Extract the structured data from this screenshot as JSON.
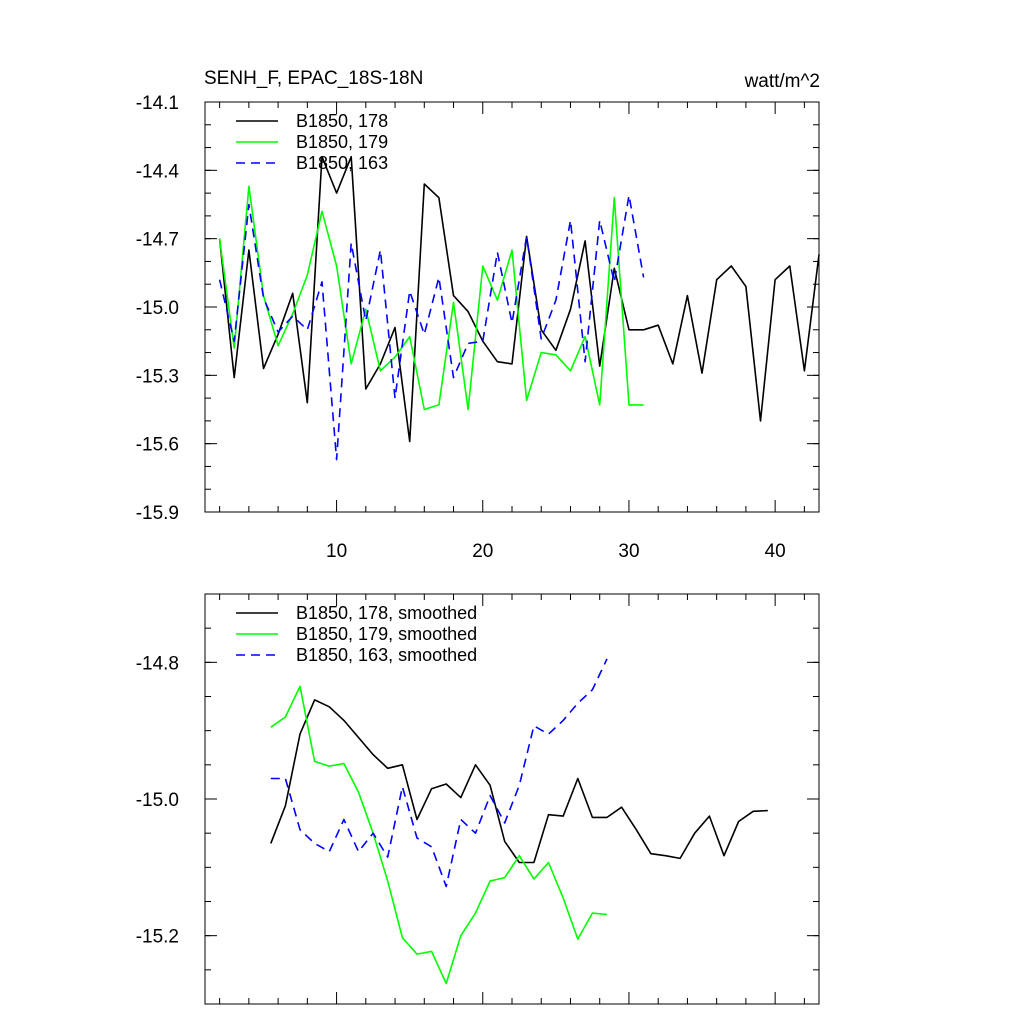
{
  "chart_data": [
    {
      "type": "line",
      "title_left": "SENH_F, EPAC_18S-18N",
      "title_right": "watt/m^2",
      "xlim": [
        1,
        43
      ],
      "ylim": [
        -15.9,
        -14.1
      ],
      "x_ticks": [
        10,
        20,
        30,
        40
      ],
      "x_tick_labels": [
        "10",
        "20",
        "30",
        "40"
      ],
      "y_ticks": [
        -14.1,
        -14.4,
        -14.7,
        -15.0,
        -15.3,
        -15.6,
        -15.9
      ],
      "y_tick_labels": [
        "-14.1",
        "-14.4",
        "-14.7",
        "-15.0",
        "-15.3",
        "-15.6",
        "-15.9"
      ],
      "series": [
        {
          "name": "B1850, 178",
          "color": "#000000",
          "dash": "solid",
          "x": [
            2,
            3,
            4,
            5,
            6,
            7,
            8,
            9,
            10,
            11,
            12,
            13,
            14,
            15,
            16,
            17,
            18,
            19,
            20,
            21,
            22,
            23,
            24,
            25,
            26,
            27,
            28,
            29,
            30,
            31,
            32,
            33,
            34,
            35,
            36,
            37,
            38,
            39,
            40,
            41,
            42,
            43
          ],
          "values": [
            -14.7,
            -15.31,
            -14.75,
            -15.27,
            -15.12,
            -14.94,
            -15.42,
            -14.34,
            -14.5,
            -14.34,
            -15.36,
            -15.25,
            -15.09,
            -15.59,
            -14.46,
            -14.52,
            -14.95,
            -15.02,
            -15.15,
            -15.24,
            -15.25,
            -14.69,
            -15.1,
            -15.19,
            -15.01,
            -14.71,
            -15.26,
            -14.83,
            -15.1,
            -15.1,
            -15.08,
            -15.25,
            -14.95,
            -15.29,
            -14.88,
            -14.82,
            -14.91,
            -15.5,
            -14.88,
            -14.82,
            -15.28,
            -14.77
          ]
        },
        {
          "name": "B1850, 179",
          "color": "#00ff00",
          "dash": "solid",
          "x": [
            2,
            3,
            4,
            5,
            6,
            7,
            8,
            9,
            10,
            11,
            12,
            13,
            14,
            15,
            16,
            17,
            18,
            19,
            20,
            21,
            22,
            23,
            24,
            25,
            26,
            27,
            28,
            29,
            30,
            31
          ],
          "values": [
            -14.7,
            -15.18,
            -14.47,
            -14.95,
            -15.17,
            -15.03,
            -14.86,
            -14.58,
            -14.82,
            -15.25,
            -15.01,
            -15.28,
            -15.22,
            -15.13,
            -15.45,
            -15.43,
            -14.98,
            -15.45,
            -14.82,
            -14.97,
            -14.75,
            -15.41,
            -15.2,
            -15.21,
            -15.28,
            -15.13,
            -15.43,
            -14.52,
            -15.43,
            -15.43
          ]
        },
        {
          "name": "B1850, 163",
          "color": "#0000ff",
          "dash": "dashed",
          "x": [
            2,
            3,
            4,
            5,
            6,
            7,
            8,
            9,
            10,
            11,
            12,
            13,
            14,
            15,
            16,
            17,
            18,
            19,
            20,
            21,
            22,
            23,
            24,
            25,
            26,
            27,
            28,
            29,
            30,
            31
          ],
          "values": [
            -14.88,
            -15.15,
            -14.55,
            -14.96,
            -15.11,
            -15.04,
            -15.1,
            -14.89,
            -15.67,
            -14.72,
            -15.06,
            -14.75,
            -15.4,
            -14.93,
            -15.12,
            -14.87,
            -15.31,
            -15.16,
            -15.15,
            -14.76,
            -15.07,
            -14.69,
            -15.14,
            -14.97,
            -14.62,
            -15.24,
            -14.62,
            -14.89,
            -14.51,
            -14.87
          ]
        }
      ]
    },
    {
      "type": "line",
      "xlim": [
        1,
        43
      ],
      "ylim": [
        -15.3,
        -14.7
      ],
      "x_ticks": [
        10,
        20,
        30,
        40
      ],
      "y_ticks": [
        -14.8,
        -15.0,
        -15.2
      ],
      "y_tick_labels": [
        "-14.8",
        "-15.0",
        "-15.2"
      ],
      "series": [
        {
          "name": "B1850, 178, smoothed",
          "color": "#000000",
          "dash": "solid",
          "x": [
            5.5,
            6.5,
            7.5,
            8.5,
            9.5,
            10.5,
            11.5,
            12.5,
            13.5,
            14.5,
            15.5,
            16.5,
            17.5,
            18.5,
            19.5,
            20.5,
            21.5,
            22.5,
            23.5,
            24.5,
            25.5,
            26.5,
            27.5,
            28.5,
            29.5,
            30.5,
            31.5,
            32.5,
            33.5,
            34.5,
            35.5,
            36.5,
            37.5,
            38.5,
            39.5
          ],
          "values": [
            -15.065,
            -15.01,
            -14.905,
            -14.855,
            -14.865,
            -14.885,
            -14.91,
            -14.935,
            -14.955,
            -14.95,
            -15.03,
            -14.985,
            -14.978,
            -14.998,
            -14.95,
            -14.98,
            -15.062,
            -15.093,
            -15.093,
            -15.023,
            -15.025,
            -14.97,
            -15.027,
            -15.027,
            -15.012,
            -15.045,
            -15.08,
            -15.083,
            -15.087,
            -15.05,
            -15.025,
            -15.083,
            -15.033,
            -15.018,
            -15.017
          ]
        },
        {
          "name": "B1850, 179, smoothed",
          "color": "#00ff00",
          "dash": "solid",
          "x": [
            5.5,
            6.5,
            7.5,
            8.5,
            9.5,
            10.5,
            11.5,
            12.5,
            13.5,
            14.5,
            15.5,
            16.5,
            17.5,
            18.5,
            19.5,
            20.5,
            21.5,
            22.5,
            23.5,
            24.5,
            25.5,
            26.5,
            27.5,
            28.5
          ],
          "values": [
            -14.895,
            -14.88,
            -14.835,
            -14.945,
            -14.952,
            -14.948,
            -14.99,
            -15.05,
            -15.12,
            -15.203,
            -15.227,
            -15.223,
            -15.27,
            -15.2,
            -15.167,
            -15.12,
            -15.115,
            -15.083,
            -15.117,
            -15.093,
            -15.145,
            -15.205,
            -15.167,
            -15.169
          ]
        },
        {
          "name": "B1850, 163, smoothed",
          "color": "#0000ff",
          "dash": "dashed",
          "x": [
            5.5,
            6.5,
            7.5,
            8.5,
            9.5,
            10.5,
            11.5,
            12.5,
            13.5,
            14.5,
            15.5,
            16.5,
            17.5,
            18.5,
            19.5,
            20.5,
            21.5,
            22.5,
            23.5,
            24.5,
            25.5,
            26.5,
            27.5,
            28.5
          ],
          "values": [
            -14.97,
            -14.97,
            -15.045,
            -15.065,
            -15.077,
            -15.03,
            -15.077,
            -15.05,
            -15.085,
            -14.982,
            -15.057,
            -15.07,
            -15.128,
            -15.03,
            -15.05,
            -14.995,
            -15.035,
            -14.98,
            -14.893,
            -14.905,
            -14.885,
            -14.86,
            -14.84,
            -14.795
          ]
        }
      ]
    }
  ]
}
